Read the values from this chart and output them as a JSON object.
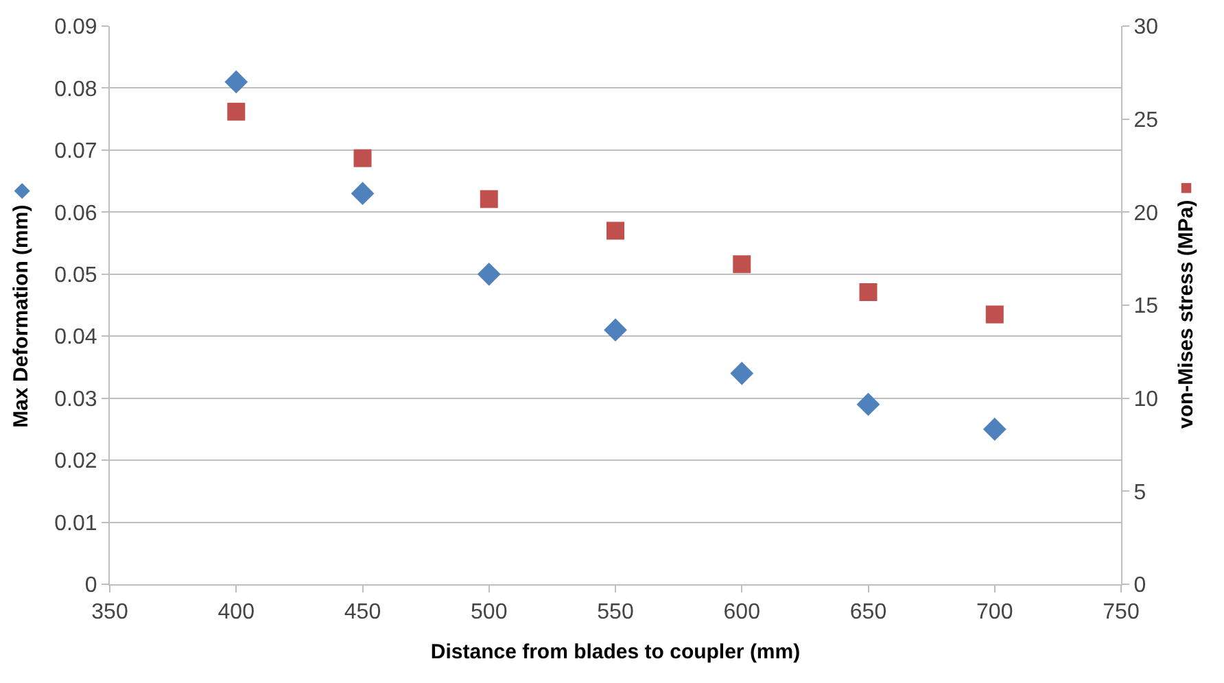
{
  "chart_data": {
    "type": "scatter",
    "xlabel": "Distance from blades to coupler (mm)",
    "ylabel": "Max Deformation (mm) ◆",
    "y2label": "von-Mises stress (MPa) ■",
    "x": [
      400,
      450,
      500,
      550,
      600,
      650,
      700
    ],
    "series": [
      {
        "color": "#4f81bd",
        "marker": "diamond",
        "values": [
          0.081,
          0.063,
          0.05,
          0.041,
          0.034,
          0.029,
          0.025
        ]
      },
      {
        "color": "#c0504d",
        "marker": "square",
        "axis": "y2",
        "values": [
          25.4,
          22.9,
          20.7,
          19.0,
          17.2,
          15.7,
          14.5
        ]
      }
    ],
    "xlim": [
      350,
      750
    ],
    "xticks": [
      350,
      400,
      450,
      500,
      550,
      600,
      650,
      700,
      750
    ],
    "ylim": [
      0,
      0.09
    ],
    "yticks": [
      0,
      0.01,
      0.02,
      0.03,
      0.04,
      0.05,
      0.06,
      0.07,
      0.08,
      0.09
    ],
    "y2lim": [
      0,
      30
    ],
    "y2ticks": [
      0,
      5,
      10,
      15,
      20,
      25,
      30
    ],
    "grid": "y"
  }
}
